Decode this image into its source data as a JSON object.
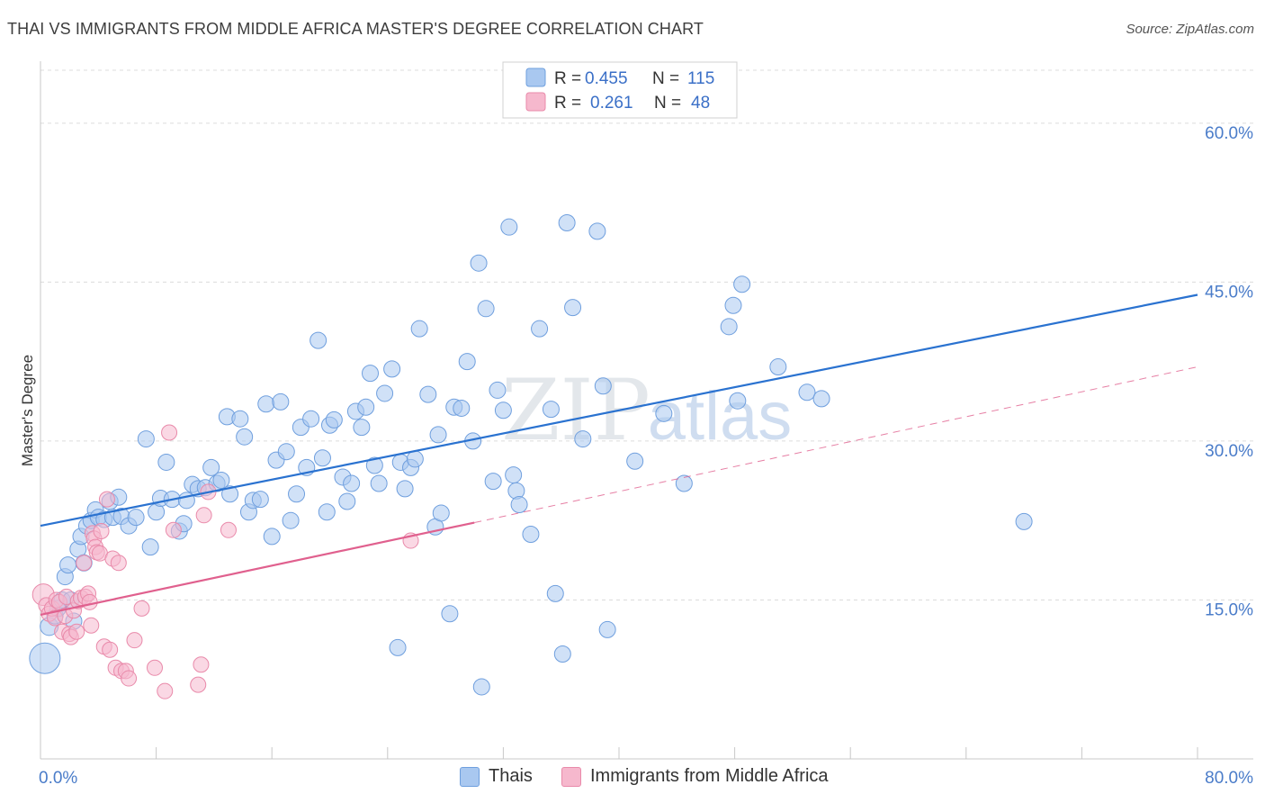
{
  "title": "THAI VS IMMIGRANTS FROM MIDDLE AFRICA MASTER'S DEGREE CORRELATION CHART",
  "source": "Source: ZipAtlas.com",
  "watermark": {
    "zip": "ZIP",
    "atlas": "atlas"
  },
  "colors": {
    "blue_fill": "#a9c8f0",
    "blue_stroke": "#6f9fde",
    "blue_line": "#2a72d0",
    "pink_fill": "#f6b8cd",
    "pink_stroke": "#e98aaa",
    "pink_line": "#e0608e",
    "grid": "#dcdcdc",
    "axis_label": "#4a7cc9"
  },
  "legend_top": {
    "rows": [
      {
        "r_label": "R =",
        "r_value": "0.455",
        "n_label": "N =",
        "n_value": "115"
      },
      {
        "r_label": "R =",
        "r_value": "0.261",
        "n_label": "N =",
        "n_value": "48"
      }
    ]
  },
  "legend_bottom": [
    {
      "label": "Thais"
    },
    {
      "label": "Immigrants from Middle Africa"
    }
  ],
  "chart_data": {
    "type": "scatter",
    "ylabel": "Master's Degree",
    "xlabel": "",
    "xlim": [
      0,
      80
    ],
    "ylim": [
      0,
      65
    ],
    "x_tick_labels": [
      {
        "value": 0,
        "label": "0.0%"
      },
      {
        "value": 80,
        "label": "80.0%"
      }
    ],
    "y_tick_labels": [
      {
        "value": 15,
        "label": "15.0%"
      },
      {
        "value": 30,
        "label": "30.0%"
      },
      {
        "value": 45,
        "label": "45.0%"
      },
      {
        "value": 60,
        "label": "60.0%"
      }
    ],
    "x_minor_ticks": [
      8,
      16,
      24,
      32,
      40,
      48,
      56,
      64,
      72,
      80
    ],
    "series": [
      {
        "name": "Thais",
        "color": "blue",
        "R": 0.455,
        "N": 115,
        "trend": {
          "x0": 0,
          "y0": 22.0,
          "x1": 80,
          "y1": 43.8,
          "style": "solid"
        },
        "points": [
          [
            0.3,
            9.5,
            3
          ],
          [
            0.6,
            12.5,
            2
          ],
          [
            1.0,
            13.5,
            1
          ],
          [
            1.2,
            14.2,
            1
          ],
          [
            1.5,
            15.0,
            1
          ],
          [
            1.7,
            17.2,
            1
          ],
          [
            1.9,
            18.3,
            1
          ],
          [
            2.1,
            15.0,
            1
          ],
          [
            2.3,
            13.0,
            1
          ],
          [
            2.6,
            19.8,
            1
          ],
          [
            2.8,
            21.0,
            1
          ],
          [
            3.0,
            18.5,
            1
          ],
          [
            3.2,
            22.0,
            1
          ],
          [
            3.5,
            22.5,
            1
          ],
          [
            3.8,
            23.5,
            1
          ],
          [
            4.0,
            22.8,
            1
          ],
          [
            4.4,
            22.6,
            1
          ],
          [
            4.8,
            24.3,
            1
          ],
          [
            5.0,
            22.8,
            1
          ],
          [
            5.4,
            24.7,
            1
          ],
          [
            5.6,
            22.9,
            1
          ],
          [
            6.1,
            22.0,
            1
          ],
          [
            6.6,
            22.8,
            1
          ],
          [
            7.3,
            30.2,
            1
          ],
          [
            7.6,
            20.0,
            1
          ],
          [
            8.0,
            23.3,
            1
          ],
          [
            8.3,
            24.6,
            1
          ],
          [
            8.7,
            28.0,
            1
          ],
          [
            9.1,
            24.5,
            1
          ],
          [
            9.6,
            21.5,
            1
          ],
          [
            9.9,
            22.2,
            1
          ],
          [
            10.1,
            24.4,
            1
          ],
          [
            10.5,
            25.9,
            1
          ],
          [
            10.9,
            25.5,
            1
          ],
          [
            11.4,
            25.6,
            1
          ],
          [
            11.8,
            27.5,
            1
          ],
          [
            12.2,
            26.0,
            1
          ],
          [
            12.5,
            26.3,
            1
          ],
          [
            12.9,
            32.3,
            1
          ],
          [
            13.1,
            25.0,
            1
          ],
          [
            13.8,
            32.1,
            1
          ],
          [
            14.1,
            30.4,
            1
          ],
          [
            14.4,
            23.3,
            1
          ],
          [
            14.7,
            24.4,
            1
          ],
          [
            15.2,
            24.5,
            1
          ],
          [
            15.6,
            33.5,
            1
          ],
          [
            16.0,
            21.0,
            1
          ],
          [
            16.3,
            28.2,
            1
          ],
          [
            16.6,
            33.7,
            1
          ],
          [
            17.0,
            29.0,
            1
          ],
          [
            17.3,
            22.5,
            1
          ],
          [
            17.7,
            25.0,
            1
          ],
          [
            18.0,
            31.3,
            1
          ],
          [
            18.4,
            27.5,
            1
          ],
          [
            18.7,
            32.1,
            1
          ],
          [
            19.2,
            39.5,
            1
          ],
          [
            19.5,
            28.4,
            1
          ],
          [
            19.8,
            23.3,
            1
          ],
          [
            20.0,
            31.5,
            1
          ],
          [
            20.3,
            32.0,
            1
          ],
          [
            20.9,
            26.6,
            1
          ],
          [
            21.2,
            24.3,
            1
          ],
          [
            21.5,
            26.0,
            1
          ],
          [
            21.8,
            32.8,
            1
          ],
          [
            22.2,
            31.3,
            1
          ],
          [
            22.5,
            33.2,
            1
          ],
          [
            22.8,
            36.4,
            1
          ],
          [
            23.1,
            27.7,
            1
          ],
          [
            23.4,
            26.0,
            1
          ],
          [
            23.8,
            34.5,
            1
          ],
          [
            24.3,
            36.8,
            1
          ],
          [
            24.7,
            10.5,
            1
          ],
          [
            24.9,
            28.0,
            1
          ],
          [
            25.2,
            25.5,
            1
          ],
          [
            25.6,
            27.5,
            1
          ],
          [
            25.9,
            28.3,
            1
          ],
          [
            26.2,
            40.6,
            1
          ],
          [
            26.8,
            34.4,
            1
          ],
          [
            27.3,
            21.9,
            1
          ],
          [
            27.5,
            30.6,
            1
          ],
          [
            27.7,
            23.2,
            1
          ],
          [
            28.3,
            13.7,
            1
          ],
          [
            28.6,
            33.2,
            1
          ],
          [
            29.1,
            33.1,
            1
          ],
          [
            29.5,
            37.5,
            1
          ],
          [
            29.9,
            30.0,
            1
          ],
          [
            30.3,
            46.8,
            1
          ],
          [
            30.5,
            6.8,
            1
          ],
          [
            30.8,
            42.5,
            1
          ],
          [
            31.3,
            26.2,
            1
          ],
          [
            31.6,
            34.8,
            1
          ],
          [
            32.0,
            32.9,
            1
          ],
          [
            32.4,
            50.2,
            1
          ],
          [
            32.7,
            26.8,
            1
          ],
          [
            32.9,
            25.3,
            1
          ],
          [
            33.1,
            24.0,
            1
          ],
          [
            33.9,
            21.2,
            1
          ],
          [
            34.5,
            40.6,
            1
          ],
          [
            35.3,
            33.0,
            1
          ],
          [
            35.6,
            15.6,
            1
          ],
          [
            36.1,
            9.9,
            1
          ],
          [
            36.4,
            50.6,
            1
          ],
          [
            36.8,
            42.6,
            1
          ],
          [
            37.5,
            30.2,
            1
          ],
          [
            38.5,
            49.8,
            1
          ],
          [
            38.9,
            35.2,
            1
          ],
          [
            39.2,
            12.2,
            1
          ],
          [
            41.1,
            28.1,
            1
          ],
          [
            43.1,
            32.6,
            1
          ],
          [
            44.5,
            26.0,
            1
          ],
          [
            47.6,
            40.8,
            1
          ],
          [
            47.9,
            42.8,
            1
          ],
          [
            48.2,
            33.8,
            1
          ],
          [
            48.5,
            44.8,
            1
          ],
          [
            51.0,
            37.0,
            1
          ],
          [
            53.0,
            34.6,
            1
          ],
          [
            54.0,
            34.0,
            1
          ],
          [
            68.0,
            22.4,
            1
          ]
        ]
      },
      {
        "name": "Immigrants from Middle Africa",
        "color": "pink",
        "R": 0.261,
        "N": 48,
        "trend": {
          "x0": 0,
          "y0": 13.6,
          "x1": 30,
          "y1": 22.3,
          "style": "solid",
          "ext_x1": 80,
          "ext_y1": 37.0,
          "ext_style": "dashed"
        },
        "points": [
          [
            0.2,
            15.5,
            2
          ],
          [
            0.4,
            14.5,
            1
          ],
          [
            0.6,
            13.7,
            1
          ],
          [
            0.8,
            14.2,
            1
          ],
          [
            1.0,
            13.3,
            1
          ],
          [
            1.1,
            15.0,
            1
          ],
          [
            1.3,
            14.8,
            1
          ],
          [
            1.5,
            12.0,
            1
          ],
          [
            1.7,
            13.5,
            1
          ],
          [
            1.8,
            15.3,
            1
          ],
          [
            2.0,
            11.8,
            1
          ],
          [
            2.1,
            11.5,
            1
          ],
          [
            2.3,
            14.0,
            1
          ],
          [
            2.5,
            12.0,
            1
          ],
          [
            2.6,
            14.9,
            1
          ],
          [
            2.8,
            15.2,
            1
          ],
          [
            3.0,
            18.5,
            1
          ],
          [
            3.1,
            15.3,
            1
          ],
          [
            3.3,
            15.6,
            1
          ],
          [
            3.4,
            14.8,
            1
          ],
          [
            3.5,
            12.6,
            1
          ],
          [
            3.6,
            21.3,
            1
          ],
          [
            3.7,
            20.8,
            1
          ],
          [
            3.8,
            20.0,
            1
          ],
          [
            3.9,
            19.5,
            1
          ],
          [
            4.1,
            19.4,
            1
          ],
          [
            4.2,
            21.5,
            1
          ],
          [
            4.4,
            10.6,
            1
          ],
          [
            4.6,
            24.5,
            1
          ],
          [
            4.8,
            10.3,
            1
          ],
          [
            5.0,
            18.9,
            1
          ],
          [
            5.2,
            8.6,
            1
          ],
          [
            5.4,
            18.5,
            1
          ],
          [
            5.6,
            8.3,
            1
          ],
          [
            5.9,
            8.3,
            1
          ],
          [
            6.1,
            7.6,
            1
          ],
          [
            6.5,
            11.2,
            1
          ],
          [
            7.0,
            14.2,
            1
          ],
          [
            7.9,
            8.6,
            1
          ],
          [
            8.6,
            6.4,
            1
          ],
          [
            8.9,
            30.8,
            1
          ],
          [
            9.2,
            21.6,
            1
          ],
          [
            10.9,
            7.0,
            1
          ],
          [
            11.1,
            8.9,
            1
          ],
          [
            11.3,
            23.0,
            1
          ],
          [
            11.6,
            25.2,
            1
          ],
          [
            13.0,
            21.6,
            1
          ],
          [
            25.6,
            20.6,
            1
          ]
        ]
      }
    ]
  }
}
